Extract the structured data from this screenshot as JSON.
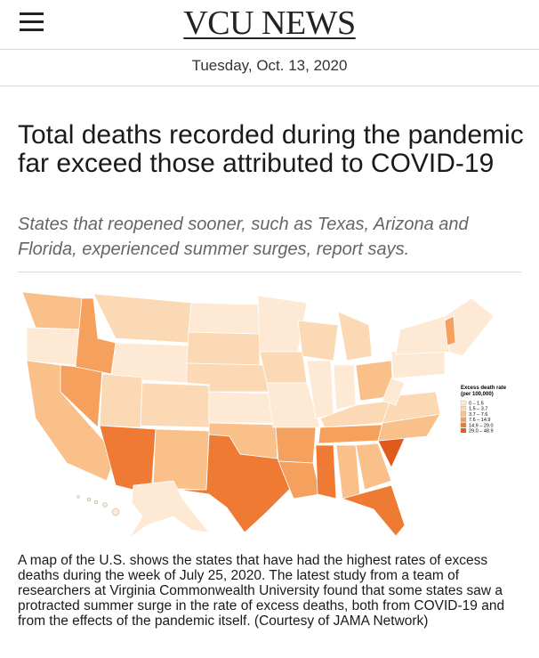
{
  "header": {
    "title": "VCU NEWS",
    "date": "Tuesday, Oct. 13, 2020"
  },
  "article": {
    "headline": "Total deaths recorded during the pandemic far exceed those attributed to COVID-19",
    "subtitle": "States that reopened sooner, such as Texas, Arizona and Florida, experienced summer surges, report says.",
    "map": {
      "legend": {
        "title": "Excess death rate",
        "subtitle": "(per 100,000)",
        "items": [
          "0 – 1.5",
          "1.5 – 3.7",
          "3.7 – 7.6",
          "7.6 – 14.9",
          "14.9 – 29.0",
          "29.0 – 48.9"
        ]
      }
    },
    "caption": "A map of the U.S. shows the states that have had the highest rates of excess deaths during the week of July 25, 2020. The latest study from a team of researchers at Virginia Commonwealth University found that some states saw a protracted summer surge in the rate of excess deaths, both from COVID-19 and from the effects of the pandemic itself. (Courtesy of JAMA Network)"
  }
}
